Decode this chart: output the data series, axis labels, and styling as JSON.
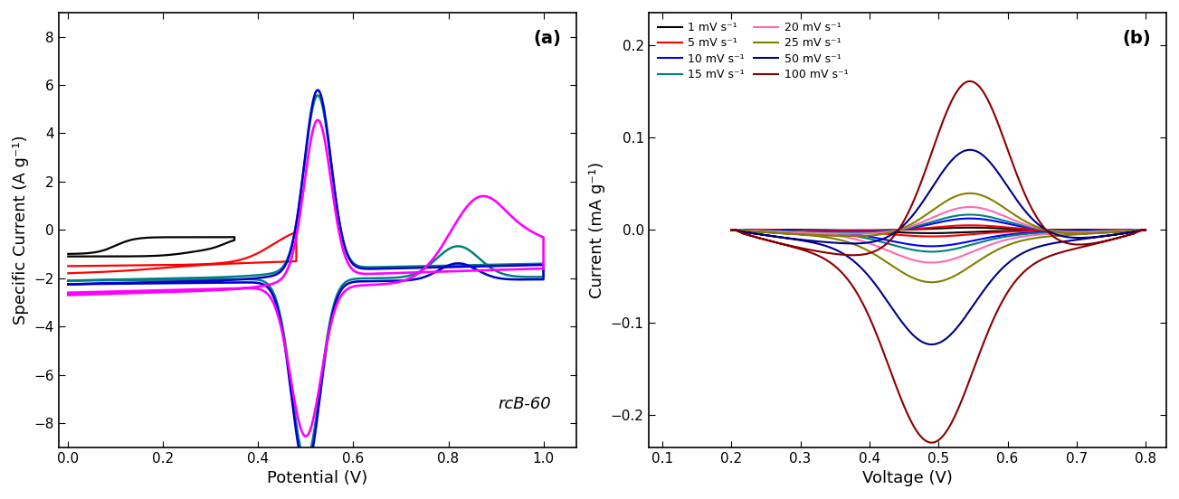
{
  "panel_a": {
    "xlabel": "Potential (V)",
    "ylabel": "Specific Current (A g⁻¹)",
    "xlim": [
      -0.02,
      1.07
    ],
    "ylim": [
      -9,
      9
    ],
    "yticks": [
      -8,
      -6,
      -4,
      -2,
      0,
      2,
      4,
      6,
      8
    ],
    "xticks": [
      0.0,
      0.2,
      0.4,
      0.6,
      0.8,
      1.0
    ],
    "label": "(a)",
    "annotation": "rcB-60"
  },
  "panel_b": {
    "xlabel": "Voltage (V)",
    "ylabel": "Current (mA g⁻¹)",
    "xlim": [
      0.08,
      0.83
    ],
    "ylim": [
      -0.235,
      0.235
    ],
    "yticks": [
      -0.2,
      -0.1,
      0.0,
      0.1,
      0.2
    ],
    "xticks": [
      0.1,
      0.2,
      0.3,
      0.4,
      0.5,
      0.6,
      0.7,
      0.8
    ],
    "label": "(b)",
    "legend_entries": [
      {
        "label": "1 mV s⁻¹",
        "color": "#000000"
      },
      {
        "label": "5 mV s⁻¹",
        "color": "#ff0000"
      },
      {
        "label": "10 mV s⁻¹",
        "color": "#0000ff"
      },
      {
        "label": "15 mV s⁻¹",
        "color": "#008080"
      },
      {
        "label": "20 mV s⁻¹",
        "color": "#ff69b4"
      },
      {
        "label": "25 mV s⁻¹",
        "color": "#808000"
      },
      {
        "label": "50 mV s⁻¹",
        "color": "#00008b"
      },
      {
        "label": "100 mV s⁻¹",
        "color": "#8b0000"
      }
    ],
    "colors": [
      "#000000",
      "#ff0000",
      "#0000ff",
      "#008080",
      "#ff69b4",
      "#808000",
      "#00008b",
      "#8b0000"
    ],
    "amplitudes": [
      0.003,
      0.006,
      0.015,
      0.02,
      0.03,
      0.048,
      0.105,
      0.195
    ]
  }
}
